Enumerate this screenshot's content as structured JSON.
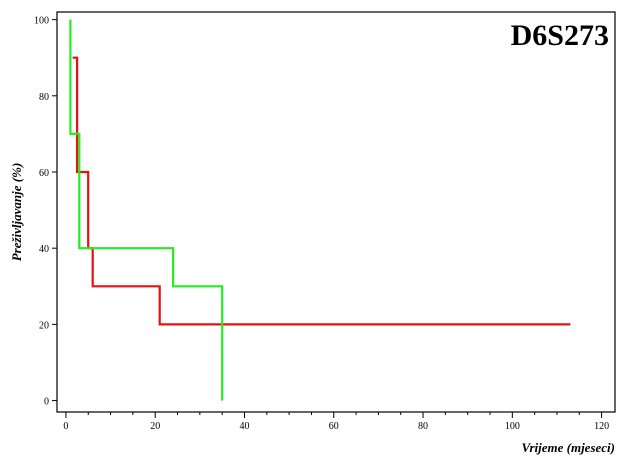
{
  "chart_data": {
    "type": "line",
    "title": "D6S273",
    "xlabel": "Vrijeme (mjeseci)",
    "ylabel": "Preživljavanje (%)",
    "xlim": [
      -2,
      123
    ],
    "ylim": [
      -3,
      102
    ],
    "x_ticks": [
      0,
      20,
      40,
      60,
      80,
      100,
      120
    ],
    "y_ticks": [
      0,
      20,
      40,
      60,
      80,
      100
    ],
    "grid": false,
    "step": true,
    "series": [
      {
        "color": "#e81010",
        "points": [
          [
            1.5,
            90
          ],
          [
            2.5,
            90
          ],
          [
            2.5,
            60
          ],
          [
            5,
            60
          ],
          [
            5,
            40
          ],
          [
            6,
            40
          ],
          [
            6,
            30
          ],
          [
            21,
            30
          ],
          [
            21,
            20
          ],
          [
            113,
            20
          ]
        ]
      },
      {
        "color": "#22ee22",
        "points": [
          [
            1,
            100
          ],
          [
            1,
            70
          ],
          [
            3,
            70
          ],
          [
            3,
            40
          ],
          [
            24,
            40
          ],
          [
            24,
            30
          ],
          [
            35,
            30
          ],
          [
            35,
            0
          ]
        ]
      }
    ]
  }
}
